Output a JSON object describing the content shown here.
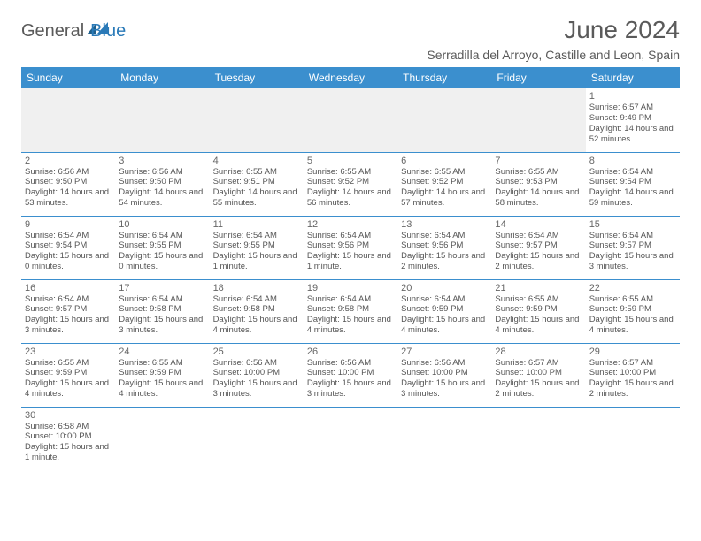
{
  "logo": {
    "text_general": "General",
    "text_blue": "Blue"
  },
  "title": "June 2024",
  "location": "Serradilla del Arroyo, Castille and Leon, Spain",
  "colors": {
    "header_bg": "#3b8fce",
    "header_text": "#ffffff",
    "row_border": "#3b8fce",
    "blank_bg": "#f0f0f0",
    "text": "#555555",
    "title_text": "#5a5a5a",
    "logo_blue": "#2a7ab8"
  },
  "typography": {
    "title_fontsize_pt": 21,
    "location_fontsize_pt": 11,
    "header_fontsize_pt": 9,
    "daynum_fontsize_pt": 8,
    "body_fontsize_pt": 7
  },
  "weekdays": [
    "Sunday",
    "Monday",
    "Tuesday",
    "Wednesday",
    "Thursday",
    "Friday",
    "Saturday"
  ],
  "weeks": [
    [
      null,
      null,
      null,
      null,
      null,
      null,
      {
        "n": "1",
        "sr": "Sunrise: 6:57 AM",
        "ss": "Sunset: 9:49 PM",
        "dl": "Daylight: 14 hours and 52 minutes."
      }
    ],
    [
      {
        "n": "2",
        "sr": "Sunrise: 6:56 AM",
        "ss": "Sunset: 9:50 PM",
        "dl": "Daylight: 14 hours and 53 minutes."
      },
      {
        "n": "3",
        "sr": "Sunrise: 6:56 AM",
        "ss": "Sunset: 9:50 PM",
        "dl": "Daylight: 14 hours and 54 minutes."
      },
      {
        "n": "4",
        "sr": "Sunrise: 6:55 AM",
        "ss": "Sunset: 9:51 PM",
        "dl": "Daylight: 14 hours and 55 minutes."
      },
      {
        "n": "5",
        "sr": "Sunrise: 6:55 AM",
        "ss": "Sunset: 9:52 PM",
        "dl": "Daylight: 14 hours and 56 minutes."
      },
      {
        "n": "6",
        "sr": "Sunrise: 6:55 AM",
        "ss": "Sunset: 9:52 PM",
        "dl": "Daylight: 14 hours and 57 minutes."
      },
      {
        "n": "7",
        "sr": "Sunrise: 6:55 AM",
        "ss": "Sunset: 9:53 PM",
        "dl": "Daylight: 14 hours and 58 minutes."
      },
      {
        "n": "8",
        "sr": "Sunrise: 6:54 AM",
        "ss": "Sunset: 9:54 PM",
        "dl": "Daylight: 14 hours and 59 minutes."
      }
    ],
    [
      {
        "n": "9",
        "sr": "Sunrise: 6:54 AM",
        "ss": "Sunset: 9:54 PM",
        "dl": "Daylight: 15 hours and 0 minutes."
      },
      {
        "n": "10",
        "sr": "Sunrise: 6:54 AM",
        "ss": "Sunset: 9:55 PM",
        "dl": "Daylight: 15 hours and 0 minutes."
      },
      {
        "n": "11",
        "sr": "Sunrise: 6:54 AM",
        "ss": "Sunset: 9:55 PM",
        "dl": "Daylight: 15 hours and 1 minute."
      },
      {
        "n": "12",
        "sr": "Sunrise: 6:54 AM",
        "ss": "Sunset: 9:56 PM",
        "dl": "Daylight: 15 hours and 1 minute."
      },
      {
        "n": "13",
        "sr": "Sunrise: 6:54 AM",
        "ss": "Sunset: 9:56 PM",
        "dl": "Daylight: 15 hours and 2 minutes."
      },
      {
        "n": "14",
        "sr": "Sunrise: 6:54 AM",
        "ss": "Sunset: 9:57 PM",
        "dl": "Daylight: 15 hours and 2 minutes."
      },
      {
        "n": "15",
        "sr": "Sunrise: 6:54 AM",
        "ss": "Sunset: 9:57 PM",
        "dl": "Daylight: 15 hours and 3 minutes."
      }
    ],
    [
      {
        "n": "16",
        "sr": "Sunrise: 6:54 AM",
        "ss": "Sunset: 9:57 PM",
        "dl": "Daylight: 15 hours and 3 minutes."
      },
      {
        "n": "17",
        "sr": "Sunrise: 6:54 AM",
        "ss": "Sunset: 9:58 PM",
        "dl": "Daylight: 15 hours and 3 minutes."
      },
      {
        "n": "18",
        "sr": "Sunrise: 6:54 AM",
        "ss": "Sunset: 9:58 PM",
        "dl": "Daylight: 15 hours and 4 minutes."
      },
      {
        "n": "19",
        "sr": "Sunrise: 6:54 AM",
        "ss": "Sunset: 9:58 PM",
        "dl": "Daylight: 15 hours and 4 minutes."
      },
      {
        "n": "20",
        "sr": "Sunrise: 6:54 AM",
        "ss": "Sunset: 9:59 PM",
        "dl": "Daylight: 15 hours and 4 minutes."
      },
      {
        "n": "21",
        "sr": "Sunrise: 6:55 AM",
        "ss": "Sunset: 9:59 PM",
        "dl": "Daylight: 15 hours and 4 minutes."
      },
      {
        "n": "22",
        "sr": "Sunrise: 6:55 AM",
        "ss": "Sunset: 9:59 PM",
        "dl": "Daylight: 15 hours and 4 minutes."
      }
    ],
    [
      {
        "n": "23",
        "sr": "Sunrise: 6:55 AM",
        "ss": "Sunset: 9:59 PM",
        "dl": "Daylight: 15 hours and 4 minutes."
      },
      {
        "n": "24",
        "sr": "Sunrise: 6:55 AM",
        "ss": "Sunset: 9:59 PM",
        "dl": "Daylight: 15 hours and 4 minutes."
      },
      {
        "n": "25",
        "sr": "Sunrise: 6:56 AM",
        "ss": "Sunset: 10:00 PM",
        "dl": "Daylight: 15 hours and 3 minutes."
      },
      {
        "n": "26",
        "sr": "Sunrise: 6:56 AM",
        "ss": "Sunset: 10:00 PM",
        "dl": "Daylight: 15 hours and 3 minutes."
      },
      {
        "n": "27",
        "sr": "Sunrise: 6:56 AM",
        "ss": "Sunset: 10:00 PM",
        "dl": "Daylight: 15 hours and 3 minutes."
      },
      {
        "n": "28",
        "sr": "Sunrise: 6:57 AM",
        "ss": "Sunset: 10:00 PM",
        "dl": "Daylight: 15 hours and 2 minutes."
      },
      {
        "n": "29",
        "sr": "Sunrise: 6:57 AM",
        "ss": "Sunset: 10:00 PM",
        "dl": "Daylight: 15 hours and 2 minutes."
      }
    ],
    [
      {
        "n": "30",
        "sr": "Sunrise: 6:58 AM",
        "ss": "Sunset: 10:00 PM",
        "dl": "Daylight: 15 hours and 1 minute."
      },
      null,
      null,
      null,
      null,
      null,
      null
    ]
  ]
}
